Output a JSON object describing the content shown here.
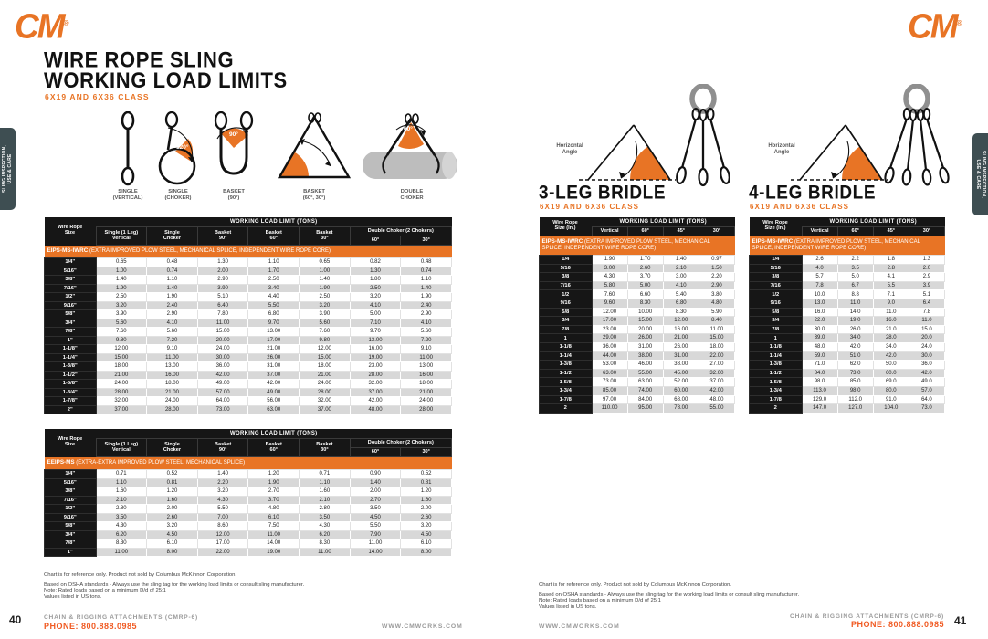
{
  "colors": {
    "orange": "#E87425",
    "phone_orange": "#F05A22",
    "header_black": "#161616",
    "row_alt": "#d8d8d8",
    "tab_slate": "#3E4E52"
  },
  "brand": {
    "logo_text": "CM",
    "trademark": "®"
  },
  "shared": {
    "notes": [
      "Chart is for reference only. Product not sold by Columbus McKinnon Corporation.",
      "Based on OSHA standards - Always use the sling tag for the working load limits or consult sling manufacturer.",
      "Note: Rated loads based on a minimum D/d of 25:1",
      "Values listed in US tons."
    ],
    "footer": {
      "catalog": "CHAIN & RIGGING ATTACHMENTS (CMRP-6)",
      "phone": "PHONE: 800.888.0985",
      "site": "WWW.CMWORKS.COM"
    },
    "side_tab": "SLING INSPECTION,\nUSE & CARE",
    "horizontal_angle": "Horizontal\nAngle"
  },
  "left_page": {
    "page_number": "40",
    "title_line1": "WIRE ROPE SLING",
    "title_line2": "WORKING LOAD LIMITS",
    "subtitle": "6X19 AND 6X36 CLASS",
    "diagrams": [
      {
        "label": "SINGLE\n(VERTICAL)"
      },
      {
        "label": "SINGLE\n(CHOKER)",
        "angle": "120°"
      },
      {
        "label": "BASKET\n(90°)",
        "angle": "90°"
      },
      {
        "label": "BASKET\n(60°, 30°)"
      },
      {
        "label": "DOUBLE\nCHOKER",
        "angle": "60°"
      }
    ],
    "table_eips": {
      "size_header": "Wire Rope\nSize",
      "wll_header": "WORKING LOAD LIMIT (TONS)",
      "columns": [
        "Single (1 Leg)\nVertical",
        "Single\nChoker",
        "Basket\n90°",
        "Basket\n60°",
        "Basket\n30°"
      ],
      "double_choker_header": "Double Choker (2 Chokers)",
      "double_choker_cols": [
        "60°",
        "30°"
      ],
      "band": {
        "code": "EIPS-MS-IWRC",
        "desc": " (EXTRA IMPROVED PLOW STEEL, MECHANICAL SPLICE, INDEPENDENT WIRE ROPE CORE)"
      },
      "rows": [
        [
          "1/4\"",
          "0.65",
          "0.48",
          "1.30",
          "1.10",
          "0.65",
          "0.82",
          "0.48"
        ],
        [
          "5/16\"",
          "1.00",
          "0.74",
          "2.00",
          "1.70",
          "1.00",
          "1.30",
          "0.74"
        ],
        [
          "3/8\"",
          "1.40",
          "1.10",
          "2.90",
          "2.50",
          "1.40",
          "1.80",
          "1.10"
        ],
        [
          "7/16\"",
          "1.90",
          "1.40",
          "3.90",
          "3.40",
          "1.90",
          "2.50",
          "1.40"
        ],
        [
          "1/2\"",
          "2.50",
          "1.90",
          "5.10",
          "4.40",
          "2.50",
          "3.20",
          "1.90"
        ],
        [
          "9/16\"",
          "3.20",
          "2.40",
          "6.40",
          "5.50",
          "3.20",
          "4.10",
          "2.40"
        ],
        [
          "5/8\"",
          "3.90",
          "2.90",
          "7.80",
          "6.80",
          "3.90",
          "5.00",
          "2.90"
        ],
        [
          "3/4\"",
          "5.60",
          "4.10",
          "11.00",
          "9.70",
          "5.60",
          "7.10",
          "4.10"
        ],
        [
          "7/8\"",
          "7.60",
          "5.60",
          "15.00",
          "13.00",
          "7.60",
          "9.70",
          "5.60"
        ],
        [
          "1\"",
          "9.80",
          "7.20",
          "20.00",
          "17.00",
          "9.80",
          "13.00",
          "7.20"
        ],
        [
          "1-1/8\"",
          "12.00",
          "9.10",
          "24.00",
          "21.00",
          "12.00",
          "16.00",
          "9.10"
        ],
        [
          "1-1/4\"",
          "15.00",
          "11.00",
          "30.00",
          "26.00",
          "15.00",
          "19.00",
          "11.00"
        ],
        [
          "1-3/8\"",
          "18.00",
          "13.00",
          "36.00",
          "31.00",
          "18.00",
          "23.00",
          "13.00"
        ],
        [
          "1-1/2\"",
          "21.00",
          "16.00",
          "42.00",
          "37.00",
          "21.00",
          "28.00",
          "16.00"
        ],
        [
          "1-5/8\"",
          "24.00",
          "18.00",
          "49.00",
          "42.00",
          "24.00",
          "32.00",
          "18.00"
        ],
        [
          "1-3/4\"",
          "28.00",
          "21.00",
          "57.00",
          "49.00",
          "28.00",
          "37.00",
          "21.00"
        ],
        [
          "1-7/8\"",
          "32.00",
          "24.00",
          "64.00",
          "56.00",
          "32.00",
          "42.00",
          "24.00"
        ],
        [
          "2\"",
          "37.00",
          "28.00",
          "73.00",
          "63.00",
          "37.00",
          "48.00",
          "28.00"
        ]
      ]
    },
    "table_eeips": {
      "size_header": "Wire Rope\nSize",
      "wll_header": "WORKING LOAD LIMIT (TONS)",
      "columns": [
        "Single (1 Leg)\nVertical",
        "Single\nChoker",
        "Basket\n90°",
        "Basket\n60°",
        "Basket\n30°"
      ],
      "double_choker_header": "Double Choker (2 Chokers)",
      "double_choker_cols": [
        "60°",
        "30°"
      ],
      "band": {
        "code": "EEIPS-MS",
        "desc": " (EXTRA-EXTRA IMPROVED PLOW STEEL, MECHANICAL SPLICE)"
      },
      "rows": [
        [
          "1/4\"",
          "0.71",
          "0.52",
          "1.40",
          "1.20",
          "0.71",
          "0.90",
          "0.52"
        ],
        [
          "5/16\"",
          "1.10",
          "0.81",
          "2.20",
          "1.90",
          "1.10",
          "1.40",
          "0.81"
        ],
        [
          "3/8\"",
          "1.60",
          "1.20",
          "3.20",
          "2.70",
          "1.60",
          "2.00",
          "1.20"
        ],
        [
          "7/16\"",
          "2.10",
          "1.60",
          "4.30",
          "3.70",
          "2.10",
          "2.70",
          "1.60"
        ],
        [
          "1/2\"",
          "2.80",
          "2.00",
          "5.50",
          "4.80",
          "2.80",
          "3.50",
          "2.00"
        ],
        [
          "9/16\"",
          "3.50",
          "2.60",
          "7.00",
          "6.10",
          "3.50",
          "4.50",
          "2.60"
        ],
        [
          "5/8\"",
          "4.30",
          "3.20",
          "8.60",
          "7.50",
          "4.30",
          "5.50",
          "3.20"
        ],
        [
          "3/4\"",
          "6.20",
          "4.50",
          "12.00",
          "11.00",
          "6.20",
          "7.90",
          "4.50"
        ],
        [
          "7/8\"",
          "8.30",
          "6.10",
          "17.00",
          "14.00",
          "8.30",
          "11.00",
          "6.10"
        ],
        [
          "1\"",
          "11.00",
          "8.00",
          "22.00",
          "19.00",
          "11.00",
          "14.00",
          "8.00"
        ]
      ]
    }
  },
  "right_page": {
    "page_number": "41",
    "bridle3": {
      "title": "3-LEG BRIDLE",
      "subtitle": "6X19 AND 6X36 CLASS",
      "size_header": "Wire Rope\nSize (In.)",
      "wll_header": "WORKING LOAD LIMIT (TONS)",
      "columns": [
        "Vertical",
        "60°",
        "45°",
        "30°"
      ],
      "band": {
        "code": "EIPS-MS-IWRC",
        "desc": " (EXTRA IMPROVED PLOW STEEL, MECHANICAL SPLICE, INDEPENDENT WIRE ROPE CORE)"
      },
      "rows": [
        [
          "1/4",
          "1.90",
          "1.70",
          "1.40",
          "0.97"
        ],
        [
          "5/16",
          "3.00",
          "2.60",
          "2.10",
          "1.50"
        ],
        [
          "3/8",
          "4.30",
          "3.70",
          "3.00",
          "2.20"
        ],
        [
          "7/16",
          "5.80",
          "5.00",
          "4.10",
          "2.90"
        ],
        [
          "1/2",
          "7.60",
          "6.60",
          "5.40",
          "3.80"
        ],
        [
          "9/16",
          "9.60",
          "8.30",
          "6.80",
          "4.80"
        ],
        [
          "5/8",
          "12.00",
          "10.00",
          "8.30",
          "5.90"
        ],
        [
          "3/4",
          "17.00",
          "15.00",
          "12.00",
          "8.40"
        ],
        [
          "7/8",
          "23.00",
          "20.00",
          "16.00",
          "11.00"
        ],
        [
          "1",
          "29.00",
          "26.00",
          "21.00",
          "15.00"
        ],
        [
          "1-1/8",
          "36.00",
          "31.00",
          "26.00",
          "18.00"
        ],
        [
          "1-1/4",
          "44.00",
          "38.00",
          "31.00",
          "22.00"
        ],
        [
          "1-3/8",
          "53.00",
          "46.00",
          "38.00",
          "27.00"
        ],
        [
          "1-1/2",
          "63.00",
          "55.00",
          "45.00",
          "32.00"
        ],
        [
          "1-5/8",
          "73.00",
          "63.00",
          "52.00",
          "37.00"
        ],
        [
          "1-3/4",
          "85.00",
          "74.00",
          "60.00",
          "42.00"
        ],
        [
          "1-7/8",
          "97.00",
          "84.00",
          "68.00",
          "48.00"
        ],
        [
          "2",
          "110.00",
          "95.00",
          "78.00",
          "55.00"
        ]
      ]
    },
    "bridle4": {
      "title": "4-LEG BRIDLE",
      "subtitle": "6X19 AND 6X36 CLASS",
      "size_header": "Wire Rope\nSize (In.)",
      "wll_header": "WORKING LOAD LIMIT (TONS)",
      "columns": [
        "Vertical",
        "60°",
        "45°",
        "30°"
      ],
      "band": {
        "code": "EIPS-MS-IWRC",
        "desc": " (EXTRA IMPROVED PLOW STEEL, MECHANICAL SPLICE, INDEPENDENT WIRE ROPE CORE)"
      },
      "rows": [
        [
          "1/4",
          "2.6",
          "2.2",
          "1.8",
          "1.3"
        ],
        [
          "5/16",
          "4.0",
          "3.5",
          "2.8",
          "2.0"
        ],
        [
          "3/8",
          "5.7",
          "5.0",
          "4.1",
          "2.9"
        ],
        [
          "7/16",
          "7.8",
          "6.7",
          "5.5",
          "3.9"
        ],
        [
          "1/2",
          "10.0",
          "8.8",
          "7.1",
          "5.1"
        ],
        [
          "9/16",
          "13.0",
          "11.0",
          "9.0",
          "6.4"
        ],
        [
          "5/8",
          "16.0",
          "14.0",
          "11.0",
          "7.8"
        ],
        [
          "3/4",
          "22.0",
          "19.0",
          "16.0",
          "11.0"
        ],
        [
          "7/8",
          "30.0",
          "26.0",
          "21.0",
          "15.0"
        ],
        [
          "1",
          "39.0",
          "34.0",
          "28.0",
          "20.0"
        ],
        [
          "1-1/8",
          "48.0",
          "42.0",
          "34.0",
          "24.0"
        ],
        [
          "1-1/4",
          "59.0",
          "51.0",
          "42.0",
          "30.0"
        ],
        [
          "1-3/8",
          "71.0",
          "62.0",
          "50.0",
          "36.0"
        ],
        [
          "1-1/2",
          "84.0",
          "73.0",
          "60.0",
          "42.0"
        ],
        [
          "1-5/8",
          "98.0",
          "85.0",
          "69.0",
          "49.0"
        ],
        [
          "1-3/4",
          "113.0",
          "98.0",
          "80.0",
          "57.0"
        ],
        [
          "1-7/8",
          "129.0",
          "112.0",
          "91.0",
          "64.0"
        ],
        [
          "2",
          "147.0",
          "127.0",
          "104.0",
          "73.0"
        ]
      ]
    }
  }
}
